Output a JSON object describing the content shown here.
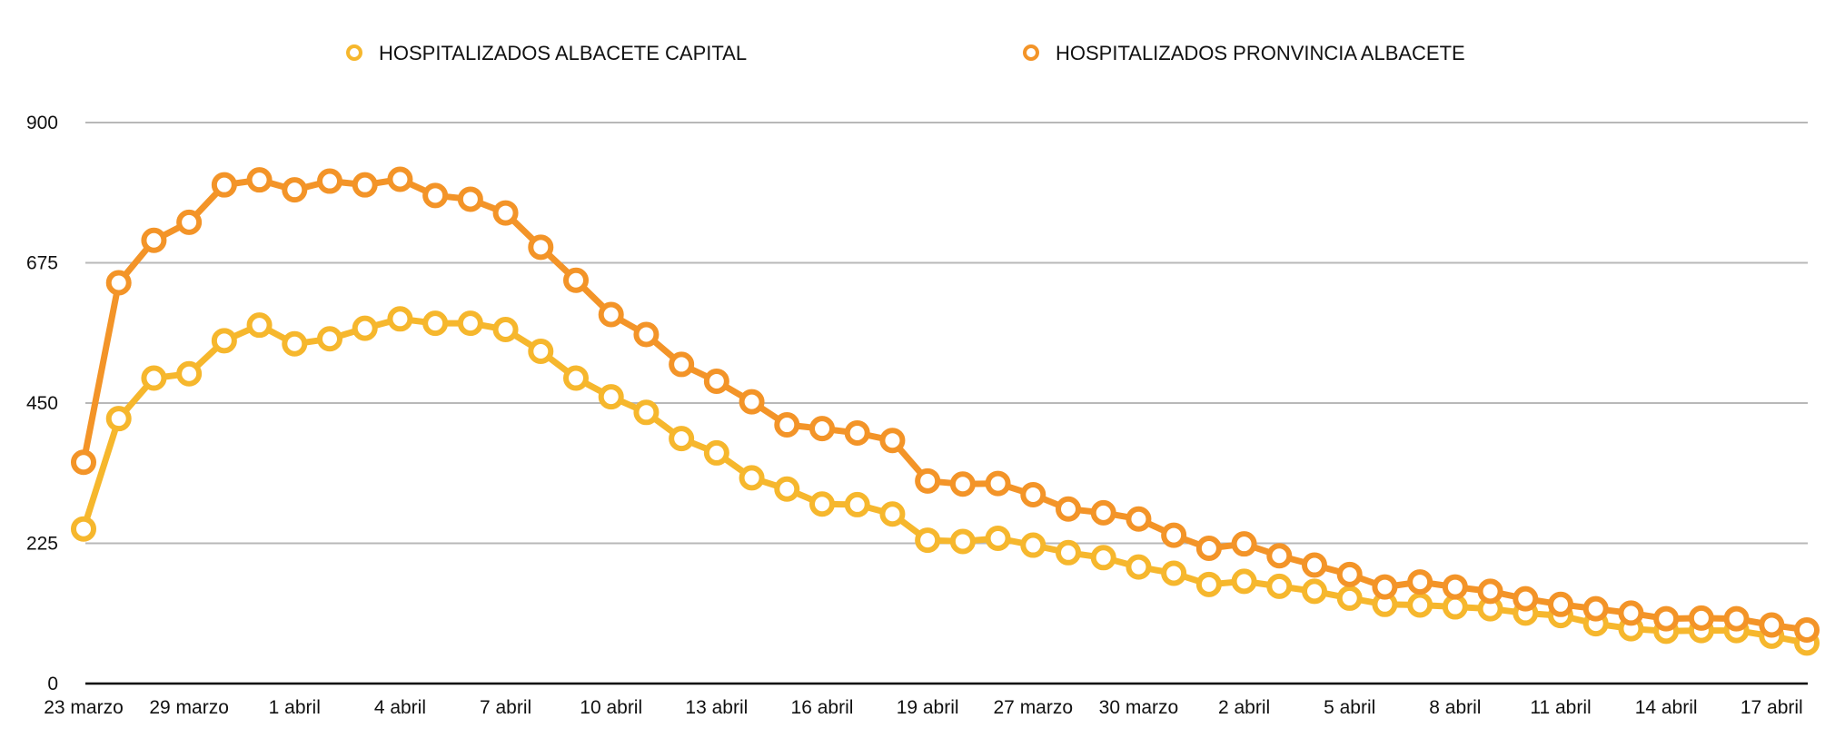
{
  "chart_data": {
    "type": "line",
    "title": "",
    "xlabel": "",
    "ylabel": "",
    "ylim": [
      0,
      900
    ],
    "yticks": [
      0,
      225,
      450,
      675,
      900
    ],
    "ytick_labels": [
      "0",
      "225",
      "450",
      "675",
      "900"
    ],
    "grid": true,
    "legend_position": "top-center",
    "x_tick_labels": [
      "23 marzo",
      "29 marzo",
      "1 abril",
      "4 abril",
      "7 abril",
      "10 abril",
      "13 abril",
      "16 abril",
      "19 abril",
      "27 marzo",
      "30 marzo",
      "2 abril",
      "5 abril",
      "8 abril",
      "11 abril",
      "14 abril",
      "17 abril"
    ],
    "x_tick_every": 3,
    "series": [
      {
        "name": "HOSPITALIZADOS ALBACETE CAPITAL",
        "color": "#F6B72D",
        "values": [
          248,
          425,
          490,
          497,
          550,
          575,
          545,
          553,
          570,
          585,
          578,
          578,
          568,
          533,
          490,
          460,
          435,
          393,
          370,
          330,
          312,
          288,
          287,
          272,
          230,
          228,
          233,
          222,
          210,
          202,
          187,
          177,
          159,
          164,
          156,
          148,
          137,
          127,
          126,
          123,
          120,
          113,
          109,
          96,
          88,
          84,
          85,
          85,
          76,
          65
        ]
      },
      {
        "name": "HOSPITALIZADOS PRONVINCIA ALBACETE",
        "color": "#F39428",
        "values": [
          355,
          643,
          711,
          740,
          800,
          808,
          792,
          806,
          800,
          809,
          783,
          777,
          755,
          700,
          647,
          592,
          560,
          512,
          485,
          452,
          415,
          409,
          402,
          390,
          325,
          320,
          321,
          303,
          280,
          274,
          264,
          238,
          217,
          224,
          205,
          190,
          175,
          155,
          163,
          155,
          148,
          136,
          127,
          120,
          113,
          104,
          105,
          104,
          94,
          86
        ]
      }
    ]
  }
}
